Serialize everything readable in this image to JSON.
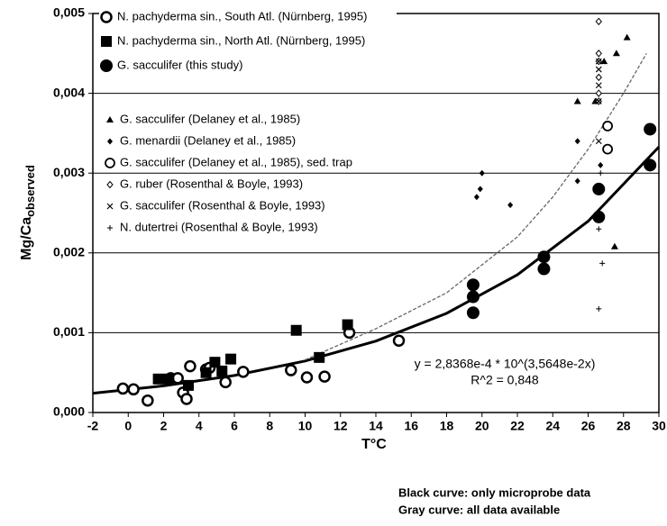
{
  "chart_data": {
    "type": "scatter",
    "y_label": "Mg/Ca",
    "y_label_sub": "observed",
    "x_label": "T°C",
    "xlim": [
      -2,
      30
    ],
    "xticks": [
      -2,
      0,
      2,
      4,
      6,
      8,
      10,
      12,
      14,
      16,
      18,
      20,
      22,
      24,
      26,
      28,
      30
    ],
    "ylim": [
      0,
      0.005
    ],
    "yticks": [
      {
        "value": 0,
        "label": "0,000"
      },
      {
        "value": 0.001,
        "label": "0,001"
      },
      {
        "value": 0.002,
        "label": "0,002"
      },
      {
        "value": 0.003,
        "label": "0,003"
      },
      {
        "value": 0.004,
        "label": "0,004"
      },
      {
        "value": 0.005,
        "label": "0,005"
      }
    ],
    "grid": true,
    "series": [
      {
        "name": "N. pachyderma sin., South Atl. (Nürnberg, 1995)",
        "marker": "circle-open",
        "color": "#000000",
        "x": [
          -0.3,
          0.3,
          1.1,
          2.4,
          2.8,
          3.1,
          3.3,
          3.5,
          4.4,
          4.6,
          5.5,
          6.5,
          9.2,
          10.1,
          11.1,
          12.5,
          15.3
        ],
        "values": [
          0.0003,
          0.00029,
          0.00015,
          0.00043,
          0.00043,
          0.00025,
          0.00017,
          0.00058,
          0.00054,
          0.00056,
          0.00038,
          0.00051,
          0.00053,
          0.00044,
          0.00045,
          0.001,
          0.0009
        ]
      },
      {
        "name": "N. pachyderma sin., North Atl. (Nürnberg, 1995)",
        "marker": "square",
        "color": "#000000",
        "x": [
          1.7,
          2.3,
          3.4,
          4.4,
          4.9,
          5.3,
          5.8,
          9.5,
          10.8,
          12.4
        ],
        "values": [
          0.00042,
          0.00042,
          0.00034,
          0.0005,
          0.00063,
          0.00052,
          0.00067,
          0.00103,
          0.00069,
          0.0011
        ]
      },
      {
        "name": "G. sacculifer (this study)",
        "marker": "circle",
        "color": "#000000",
        "x": [
          19.5,
          19.5,
          19.5,
          23.5,
          23.5,
          26.6,
          26.6,
          29.5,
          29.5
        ],
        "values": [
          0.0016,
          0.00145,
          0.00125,
          0.00195,
          0.0018,
          0.0028,
          0.00245,
          0.00355,
          0.0031
        ]
      },
      {
        "name": "G. sacculifer (Delaney et al., 1985)",
        "marker": "triangle",
        "color": "#000000",
        "x": [
          25.4,
          26.4,
          26.9,
          27.6,
          28.2,
          27.5
        ],
        "values": [
          0.0039,
          0.0039,
          0.0044,
          0.0045,
          0.0047,
          0.00208
        ]
      },
      {
        "name": "G. menardii (Delaney et al., 1985)",
        "marker": "diamond",
        "color": "#000000",
        "x": [
          19.7,
          19.9,
          20,
          21.6,
          25.4,
          25.4,
          26.7
        ],
        "values": [
          0.0027,
          0.0028,
          0.003,
          0.0026,
          0.0034,
          0.0029,
          0.0031
        ]
      },
      {
        "name": "G. sacculifer (Delaney et al., 1985), sed. trap",
        "marker": "circle-open-small",
        "color": "#000000",
        "x": [
          27.1,
          27.1
        ],
        "values": [
          0.00359,
          0.0033
        ]
      },
      {
        "name": "G. ruber (Rosenthal & Boyle, 1993)",
        "marker": "diamond-open",
        "color": "#000000",
        "x": [
          26.6,
          26.6,
          26.6,
          26.6,
          26.6,
          26.6
        ],
        "values": [
          0.0049,
          0.0045,
          0.0044,
          0.0042,
          0.004,
          0.0039
        ]
      },
      {
        "name": "G. sacculifer (Rosenthal & Boyle, 1993)",
        "marker": "x",
        "color": "#000000",
        "x": [
          26.6,
          26.6,
          26.6,
          26.6,
          26.6
        ],
        "values": [
          0.0044,
          0.0043,
          0.0041,
          0.0039,
          0.0034
        ]
      },
      {
        "name": "N. dutertrei (Rosenthal & Boyle, 1993)",
        "marker": "plus",
        "color": "#000000",
        "x": [
          26.6,
          26.6,
          26.8,
          26.6,
          26.7
        ],
        "values": [
          0.00246,
          0.0023,
          0.00187,
          0.0013,
          0.003
        ]
      }
    ],
    "curves": [
      {
        "name": "Black curve: only microprobe data",
        "color": "#000000",
        "dashed": false,
        "x": [
          -2,
          2,
          6,
          10,
          14,
          18,
          22,
          26,
          30
        ],
        "values": [
          0.000241,
          0.000334,
          0.000464,
          0.000645,
          0.000895,
          0.001243,
          0.001726,
          0.002397,
          0.003328
        ]
      },
      {
        "name": "Gray curve: all data available",
        "color": "#666666",
        "dashed": true,
        "x": [
          10,
          14,
          18,
          22,
          24,
          26,
          28,
          29.3
        ],
        "values": [
          0.00066,
          0.00105,
          0.0015,
          0.0022,
          0.0027,
          0.0033,
          0.004,
          0.0045
        ]
      }
    ],
    "annotations": [
      "y = 2,8368e-4 * 10^(3,5648e-2x)",
      "R^2 = 0,848"
    ]
  }
}
